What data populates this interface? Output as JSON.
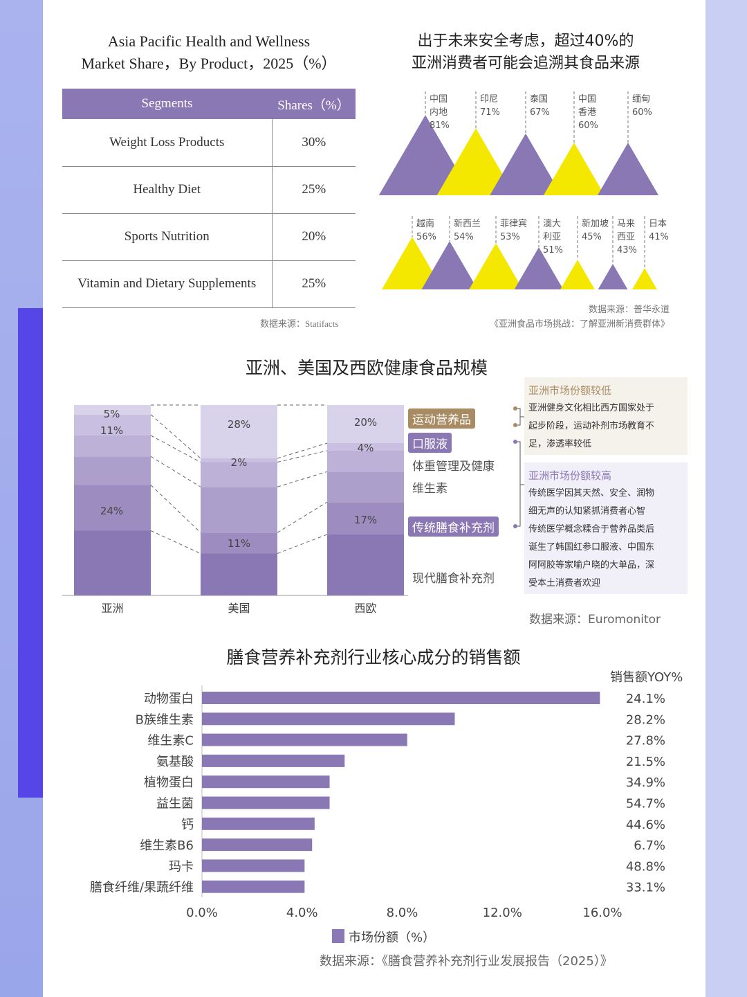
{
  "colors": {
    "purple": "#8a78b4",
    "yellow": "#f5e800",
    "gold": "#a88b62"
  },
  "table": {
    "title_line1": "Asia Pacific Health and Wellness",
    "title_line2": "Market Share，By Product，2025（%）",
    "headers": [
      "Segments",
      "Shares（%）"
    ],
    "rows": [
      [
        "Weight Loss Products",
        "30%"
      ],
      [
        "Healthy Diet",
        "25%"
      ],
      [
        "Sports Nutrition",
        "20%"
      ],
      [
        "Vitamin and Dietary Supplements",
        "25%"
      ]
    ],
    "source": "数据来源：Statifacts"
  },
  "chart_data": [
    {
      "type": "triangle",
      "title_line1": "出于未来安全考虑，超过40%的",
      "title_line2": "亚洲消费者可能会追溯其食品来源",
      "rows": [
        [
          {
            "name": "中国内地",
            "lines": [
              "中国",
              "内地"
            ],
            "label": "81%",
            "value": 81,
            "color": "purple"
          },
          {
            "name": "印尼",
            "lines": [
              "印尼"
            ],
            "label": "71%",
            "value": 71,
            "color": "yellow"
          },
          {
            "name": "泰国",
            "lines": [
              "泰国"
            ],
            "label": "67%",
            "value": 67,
            "color": "purple"
          },
          {
            "name": "中国香港",
            "lines": [
              "中国",
              "香港"
            ],
            "label": "60%",
            "value": 60,
            "color": "yellow"
          },
          {
            "name": "缅甸",
            "lines": [
              "缅甸"
            ],
            "label": "60%",
            "value": 60,
            "color": "purple"
          }
        ],
        [
          {
            "name": "越南",
            "lines": [
              "越南"
            ],
            "label": "56%",
            "value": 56,
            "color": "yellow"
          },
          {
            "name": "新西兰",
            "lines": [
              "新西兰"
            ],
            "label": "54%",
            "value": 54,
            "color": "purple"
          },
          {
            "name": "菲律宾",
            "lines": [
              "菲律宾"
            ],
            "label": "53%",
            "value": 53,
            "color": "yellow"
          },
          {
            "name": "澳大利亚",
            "lines": [
              "澳大",
              "利亚"
            ],
            "label": "51%",
            "value": 51,
            "color": "purple"
          },
          {
            "name": "新加坡",
            "lines": [
              "新加坡"
            ],
            "label": "45%",
            "value": 45,
            "color": "yellow"
          },
          {
            "name": "马来西亚",
            "lines": [
              "马来",
              "西亚"
            ],
            "label": "43%",
            "value": 43,
            "color": "purple"
          },
          {
            "name": "日本",
            "lines": [
              "日本"
            ],
            "label": "41%",
            "value": 41,
            "color": "yellow"
          }
        ]
      ],
      "source_line1": "数据来源：普华永道",
      "source_line2": "《亚洲食品市场挑战：了解亚洲新消费群体》"
    },
    {
      "type": "stacked_bar",
      "title": "亚洲、美国及西欧健康食品规模",
      "categories": [
        "亚洲",
        "美国",
        "西欧"
      ],
      "series": [
        {
          "name": "现代膳食补充剂",
          "values": [
            34,
            22,
            32
          ]
        },
        {
          "name": "传统膳食补充剂",
          "values": [
            24,
            11,
            17
          ]
        },
        {
          "name": "维生素",
          "values": [
            15,
            24,
            16
          ]
        },
        {
          "name": "体重管理及健康",
          "values": [
            11,
            13,
            11
          ]
        },
        {
          "name": "口服液",
          "values": [
            11,
            2,
            4
          ]
        },
        {
          "name": "运动营养品",
          "values": [
            5,
            28,
            20
          ]
        }
      ],
      "data_labels": [
        [
          "5%",
          "11%",
          "24%"
        ],
        [
          "28%",
          "2%",
          "11%"
        ],
        [
          "20%",
          "4%",
          "17%"
        ]
      ],
      "seg_colors": [
        "#8a78b4",
        "#9c8cc0",
        "#ac9fcc",
        "#bdb1d8",
        "#c9bfe0",
        "#d8d2ea"
      ],
      "legend": {
        "sport": "运动营养品",
        "oral": "口服液",
        "weight": "体重管理及健康",
        "vitamin": "维生素",
        "traditional": "传统膳食补充剂",
        "modern": "现代膳食补充剂"
      },
      "note_low": {
        "title": "亚洲市场份额较低",
        "lines": [
          "亚洲健身文化相比西方国家处于",
          "起步阶段，运动补剂市场教育不",
          "足，渗透率较低"
        ]
      },
      "note_high": {
        "title": "亚洲市场份额较高",
        "lines": [
          "传统医学因其天然、安全、润物",
          "细无声的认知紧抓消费者心智",
          "传统医学概念糅合于营养品类后",
          "诞生了韩国红参口服液、中国东",
          "阿阿胶等家喻户晓的大单品，深",
          "受本土消费者欢迎"
        ]
      },
      "source": "数据来源：Euromonitor"
    },
    {
      "type": "bar",
      "orientation": "horizontal",
      "title": "膳食营养补充剂行业核心成分的销售额",
      "categories": [
        "动物蛋白",
        "B族维生素",
        "维生素C",
        "氨基酸",
        "植物蛋白",
        "益生菌",
        "钙",
        "维生素B6",
        "玛卡",
        "膳食纤维/果蔬纤维"
      ],
      "values": [
        15.9,
        10.1,
        8.2,
        5.7,
        5.1,
        5.1,
        4.5,
        4.4,
        4.1,
        4.1
      ],
      "yoy_header": "销售额YOY%",
      "yoy": [
        "24.1%",
        "28.2%",
        "27.8%",
        "21.5%",
        "34.9%",
        "54.7%",
        "44.6%",
        "6.7%",
        "48.8%",
        "33.1%"
      ],
      "xlim": [
        0,
        16
      ],
      "xticks": [
        "0.0%",
        "4.0%",
        "8.0%",
        "12.0%",
        "16.0%"
      ],
      "legend": "市场份额（%）",
      "source": "数据来源：《膳食营养补充剂行业发展报告（2025）》"
    }
  ]
}
